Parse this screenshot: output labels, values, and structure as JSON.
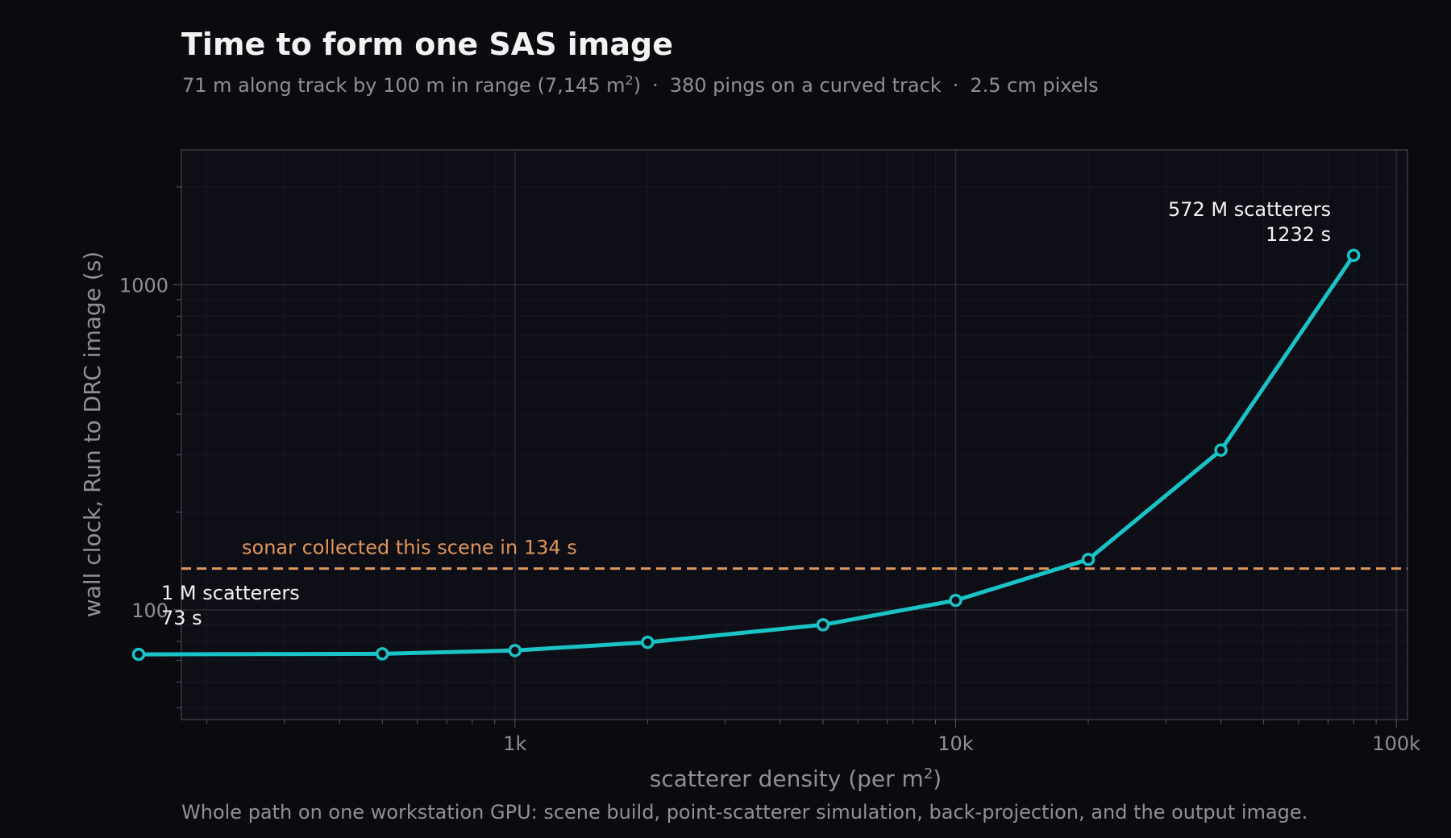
{
  "title": "Time to form one SAS image",
  "subtitle": {
    "extent_prefix": "71 m along track by 100 m in range (7,145 m",
    "extent_sup": "2",
    "extent_suffix": ")",
    "separator": "·",
    "pings": "380 pings on a curved track",
    "pixels": "2.5 cm pixels"
  },
  "footnote": "Whole path on one workstation GPU: scene build, point-scatterer simulation, back-projection, and the output image.",
  "colors": {
    "background": "#0b0b0f",
    "plot_background": "#0d0e16",
    "line": "#19c3c6",
    "reference": "#e0955a",
    "text": "#f2f2f2",
    "muted_text": "#8f8f95"
  },
  "chart_data": {
    "type": "line",
    "xscale": "log",
    "yscale": "log",
    "xlabel_text": "scatterer density (per m",
    "xlabel_sup": "2",
    "xlabel_suffix": ")",
    "ylabel": "wall clock, Run to DRC image (s)",
    "xlim": [
      175,
      106000
    ],
    "ylim": [
      46,
      2600
    ],
    "grid": true,
    "x": [
      140,
      500,
      1000,
      2000,
      5000,
      10000,
      20000,
      40000,
      80000
    ],
    "y": [
      73,
      73.3,
      75,
      79.5,
      90,
      107,
      143,
      310,
      1232
    ],
    "x_ticks": [
      {
        "value": 1000,
        "label": "1k"
      },
      {
        "value": 10000,
        "label": "10k"
      },
      {
        "value": 100000,
        "label": "100k"
      }
    ],
    "y_ticks": [
      {
        "value": 100,
        "label": "100"
      },
      {
        "value": 1000,
        "label": "1000"
      }
    ],
    "reference_line": {
      "y": 134,
      "label": "sonar collected this scene in 134 s"
    },
    "annotations": [
      {
        "point_index": 0,
        "line1": "1 M scatterers",
        "line2": "73 s",
        "anchor": "start"
      },
      {
        "point_index": 8,
        "line1": "572 M scatterers",
        "line2": "1232 s",
        "anchor": "end"
      }
    ]
  }
}
